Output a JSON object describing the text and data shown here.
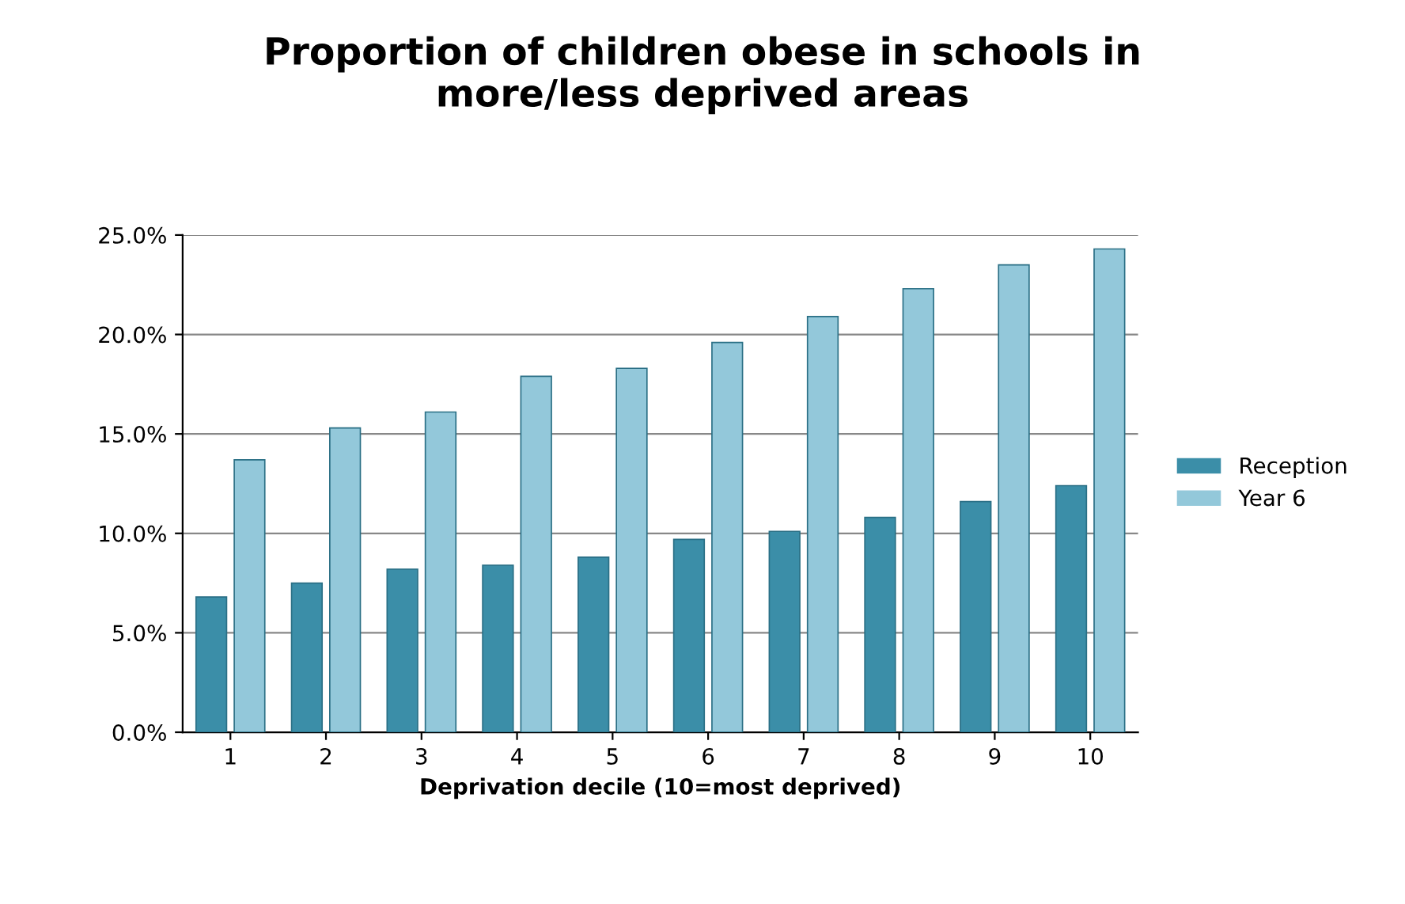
{
  "chart_data": {
    "type": "bar",
    "title": "Proportion of children obese in schools in\nmore/less deprived areas",
    "xlabel": "Deprivation decile (10=most deprived)",
    "categories": [
      "1",
      "2",
      "3",
      "4",
      "5",
      "6",
      "7",
      "8",
      "9",
      "10"
    ],
    "series": [
      {
        "name": "Reception",
        "color": "#3b8ea8",
        "values": [
          6.8,
          7.5,
          8.2,
          8.4,
          8.8,
          9.7,
          10.1,
          10.8,
          11.6,
          12.4
        ]
      },
      {
        "name": "Year 6",
        "color": "#93c8da",
        "values": [
          13.7,
          15.3,
          16.1,
          17.9,
          18.3,
          19.6,
          20.9,
          22.3,
          23.5,
          24.3
        ]
      }
    ],
    "ylim": [
      0,
      25
    ],
    "yticks": [
      {
        "value": 0,
        "label": "0.0%"
      },
      {
        "value": 5,
        "label": "5.0%"
      },
      {
        "value": 10,
        "label": "10.0%"
      },
      {
        "value": 15,
        "label": "15.0%"
      },
      {
        "value": 20,
        "label": "20.0%"
      },
      {
        "value": 25,
        "label": "25.0%"
      }
    ],
    "grid": "y",
    "legend": "right"
  }
}
